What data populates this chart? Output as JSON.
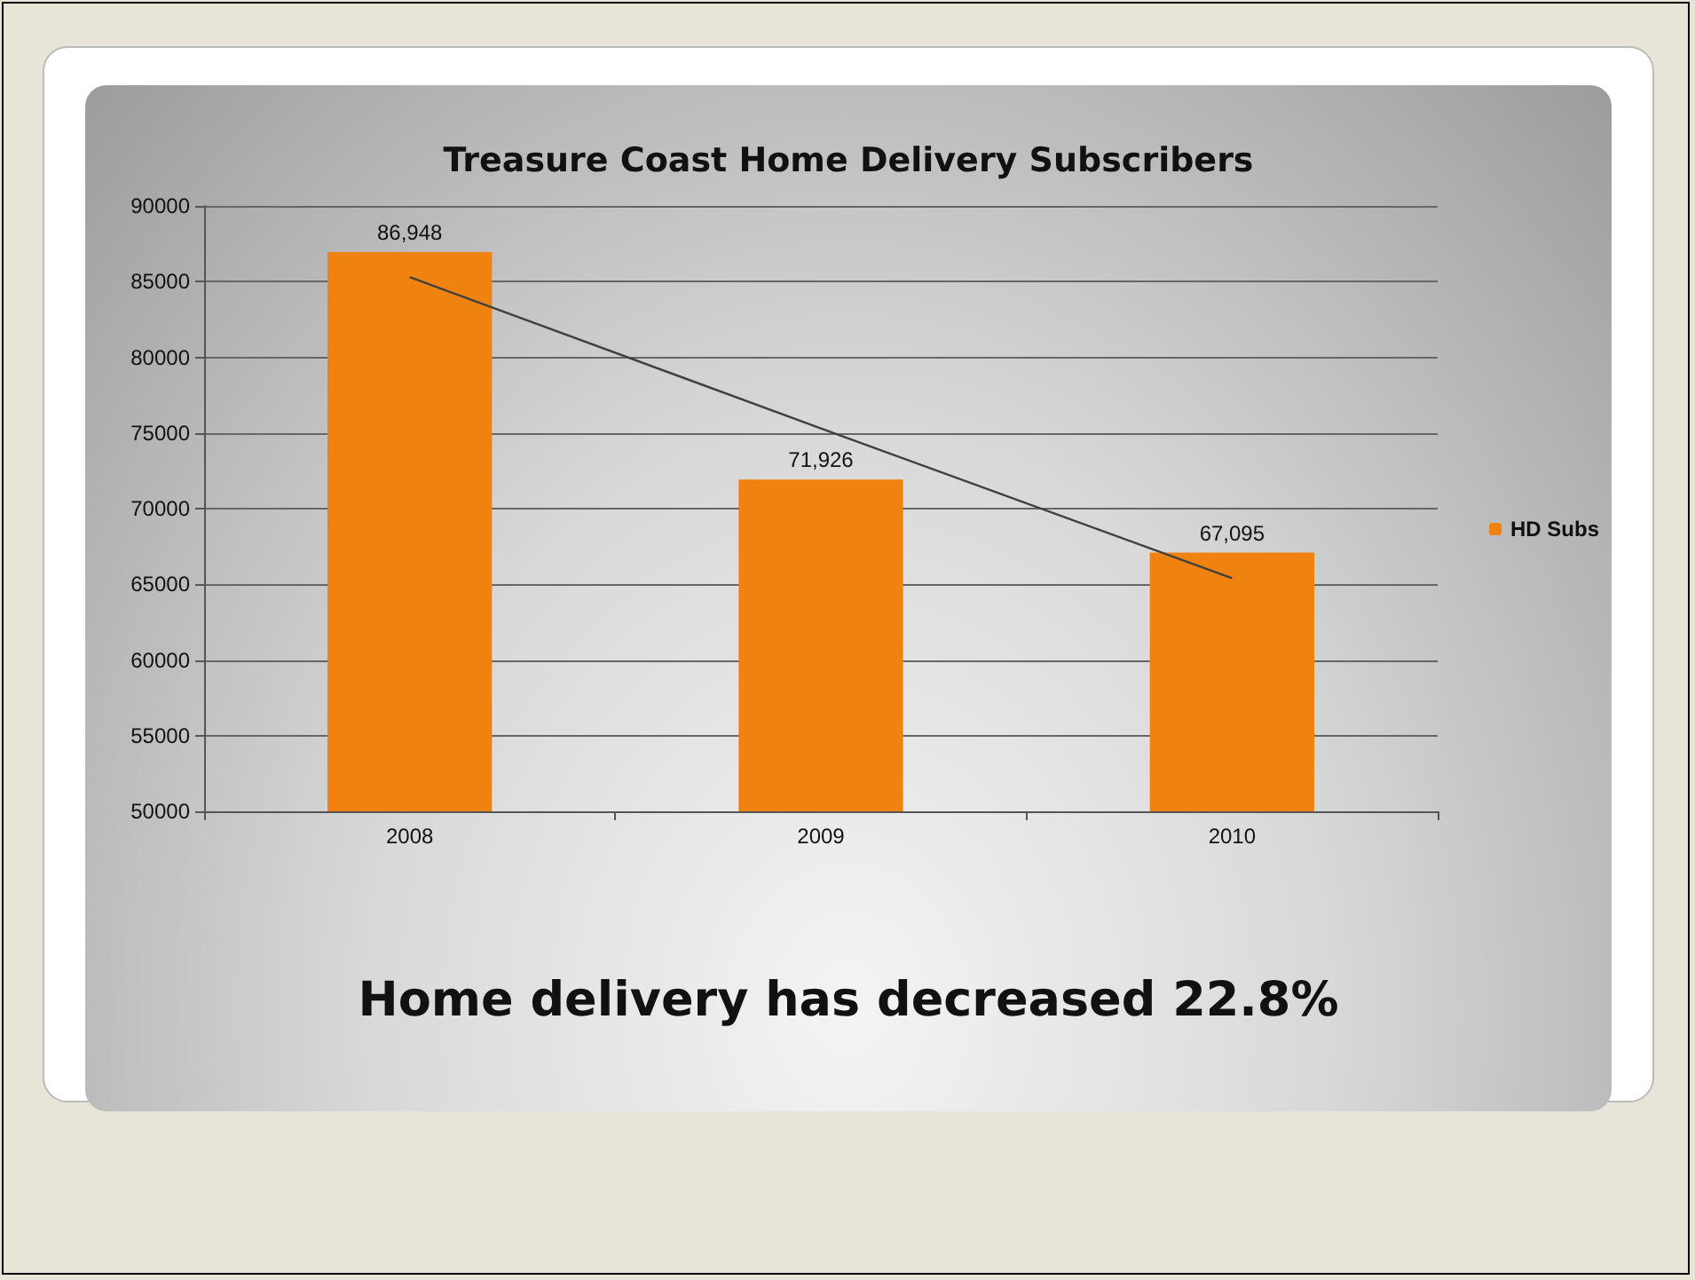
{
  "chart_data": {
    "type": "bar",
    "title": "Treasure Coast Home Delivery Subscribers",
    "categories": [
      "2008",
      "2009",
      "2010"
    ],
    "series": [
      {
        "name": "HD Subs",
        "color": "#f0820f",
        "values": [
          86948,
          71926,
          67095
        ],
        "value_labels": [
          "86,948",
          "71,926",
          "67,095"
        ]
      },
      {
        "type": "line",
        "color": "#404040",
        "values": [
          85300,
          75300,
          65400
        ]
      }
    ],
    "ylim": [
      50000,
      90000
    ],
    "yticks": [
      50000,
      55000,
      60000,
      65000,
      70000,
      75000,
      80000,
      85000,
      90000
    ],
    "grid": "y",
    "legend": "right",
    "marker": "none",
    "annotations": [
      "Home delivery has decreased 22.8%"
    ]
  }
}
